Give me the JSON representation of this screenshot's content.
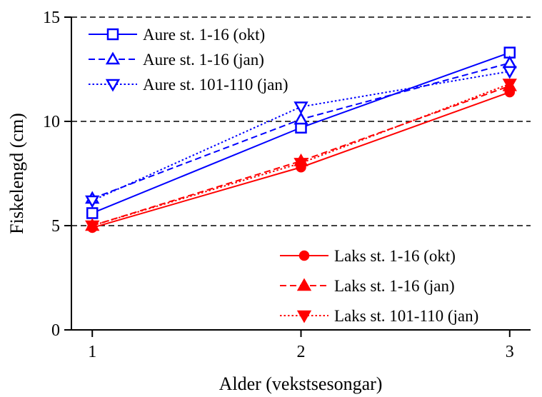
{
  "chart_data": {
    "type": "line",
    "title": "",
    "xlabel": "Alder (vekstsesongar)",
    "ylabel": "Fiskelengd (cm)",
    "x": [
      1,
      2,
      3
    ],
    "xticks": [
      "1",
      "2",
      "3"
    ],
    "xlim": [
      0.9,
      3.1
    ],
    "ylim": [
      0,
      15
    ],
    "yticks": [
      0,
      5,
      10,
      15
    ],
    "reference_lines": [
      5,
      10,
      15
    ],
    "legend_placement": [
      "top-left",
      "bottom-right"
    ],
    "series": [
      {
        "name": "Aure st. 1-16 (okt)",
        "values": [
          5.6,
          9.7,
          13.3
        ],
        "color": "#0000ff",
        "dash": "solid",
        "marker": "square-open"
      },
      {
        "name": "Aure st. 1-16 (jan)",
        "values": [
          6.3,
          10.1,
          12.8
        ],
        "color": "#0000ff",
        "dash": "dashed",
        "marker": "triangle-up-open"
      },
      {
        "name": "Aure st. 101-110 (jan)",
        "values": [
          6.2,
          10.7,
          12.4
        ],
        "color": "#0000ff",
        "dash": "dotted",
        "marker": "triangle-down-open"
      },
      {
        "name": "Laks st. 1-16 (okt)",
        "values": [
          4.9,
          7.8,
          11.4
        ],
        "color": "#ff0000",
        "dash": "solid",
        "marker": "circle-filled"
      },
      {
        "name": "Laks st. 1-16 (jan)",
        "values": [
          5.0,
          8.1,
          11.7
        ],
        "color": "#ff0000",
        "dash": "dashed",
        "marker": "triangle-up-filled"
      },
      {
        "name": "Laks st. 101-110 (jan)",
        "values": [
          5.0,
          8.0,
          11.8
        ],
        "color": "#ff0000",
        "dash": "dotted",
        "marker": "triangle-down-filled"
      }
    ]
  }
}
